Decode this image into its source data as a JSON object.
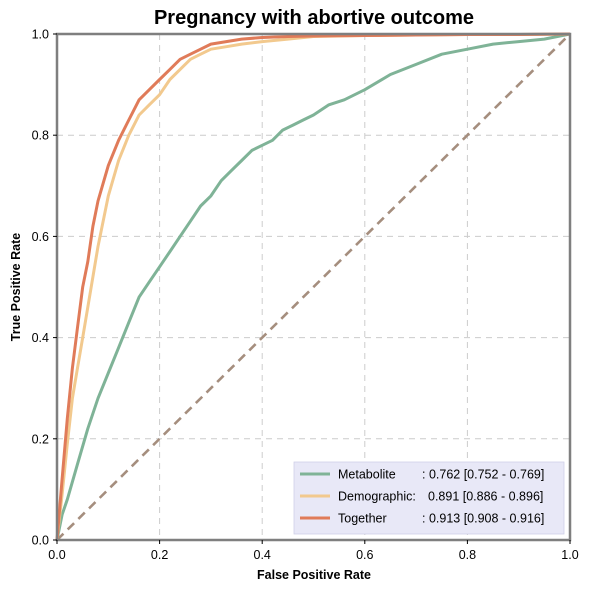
{
  "chart_data": {
    "type": "line",
    "title": "Pregnancy with abortive outcome",
    "xlabel": "False Positive Rate",
    "ylabel": "True Positive Rate",
    "xlim": [
      0,
      1
    ],
    "ylim": [
      0,
      1
    ],
    "grid": true,
    "x_ticks": [
      "0.0",
      "0.2",
      "0.4",
      "0.6",
      "0.8",
      "1.0"
    ],
    "y_ticks": [
      "0.0",
      "0.2",
      "0.4",
      "0.6",
      "0.8",
      "1.0"
    ],
    "legend_position": "bottom-right",
    "diagonal_color": "#a58e7e",
    "series": [
      {
        "name": "Metabolite",
        "label_name": "Metabolite",
        "label_auc": ": 0.762 [0.752 - 0.769]",
        "color": "#7fb397",
        "x": [
          0,
          0.01,
          0.02,
          0.04,
          0.06,
          0.08,
          0.1,
          0.12,
          0.14,
          0.16,
          0.18,
          0.2,
          0.22,
          0.24,
          0.26,
          0.28,
          0.3,
          0.32,
          0.34,
          0.36,
          0.38,
          0.4,
          0.42,
          0.44,
          0.46,
          0.48,
          0.5,
          0.53,
          0.56,
          0.6,
          0.65,
          0.7,
          0.75,
          0.8,
          0.85,
          0.9,
          0.95,
          1.0
        ],
        "y": [
          0,
          0.05,
          0.08,
          0.15,
          0.22,
          0.28,
          0.33,
          0.38,
          0.43,
          0.48,
          0.51,
          0.54,
          0.57,
          0.6,
          0.63,
          0.66,
          0.68,
          0.71,
          0.73,
          0.75,
          0.77,
          0.78,
          0.79,
          0.81,
          0.82,
          0.83,
          0.84,
          0.86,
          0.87,
          0.89,
          0.92,
          0.94,
          0.96,
          0.97,
          0.98,
          0.985,
          0.99,
          1.0
        ]
      },
      {
        "name": "Demographic",
        "label_name": "Demographic:",
        "label_auc": "0.891 [0.886 - 0.896]",
        "color": "#f2c98e",
        "x": [
          0,
          0.01,
          0.02,
          0.03,
          0.04,
          0.05,
          0.06,
          0.07,
          0.08,
          0.1,
          0.12,
          0.14,
          0.16,
          0.18,
          0.2,
          0.22,
          0.24,
          0.26,
          0.28,
          0.3,
          0.33,
          0.36,
          0.4,
          0.45,
          0.5,
          0.6,
          0.7,
          0.8,
          0.9,
          1.0
        ],
        "y": [
          0,
          0.09,
          0.19,
          0.28,
          0.34,
          0.4,
          0.46,
          0.52,
          0.58,
          0.68,
          0.75,
          0.8,
          0.84,
          0.86,
          0.88,
          0.91,
          0.93,
          0.95,
          0.96,
          0.97,
          0.975,
          0.98,
          0.985,
          0.99,
          0.995,
          0.997,
          0.998,
          0.999,
          0.999,
          1.0
        ]
      },
      {
        "name": "Together",
        "label_name": "Together",
        "label_auc": ": 0.913 [0.908 - 0.916]",
        "color": "#e07b59",
        "x": [
          0,
          0.01,
          0.02,
          0.03,
          0.04,
          0.05,
          0.06,
          0.07,
          0.08,
          0.1,
          0.12,
          0.14,
          0.16,
          0.18,
          0.2,
          0.22,
          0.24,
          0.26,
          0.28,
          0.3,
          0.33,
          0.36,
          0.4,
          0.45,
          0.5,
          0.6,
          0.7,
          0.8,
          0.9,
          1.0
        ],
        "y": [
          0,
          0.12,
          0.24,
          0.34,
          0.42,
          0.5,
          0.55,
          0.62,
          0.67,
          0.74,
          0.79,
          0.83,
          0.87,
          0.89,
          0.91,
          0.93,
          0.95,
          0.96,
          0.97,
          0.98,
          0.985,
          0.99,
          0.993,
          0.995,
          0.996,
          0.997,
          0.998,
          0.999,
          0.999,
          1.0
        ]
      }
    ]
  }
}
